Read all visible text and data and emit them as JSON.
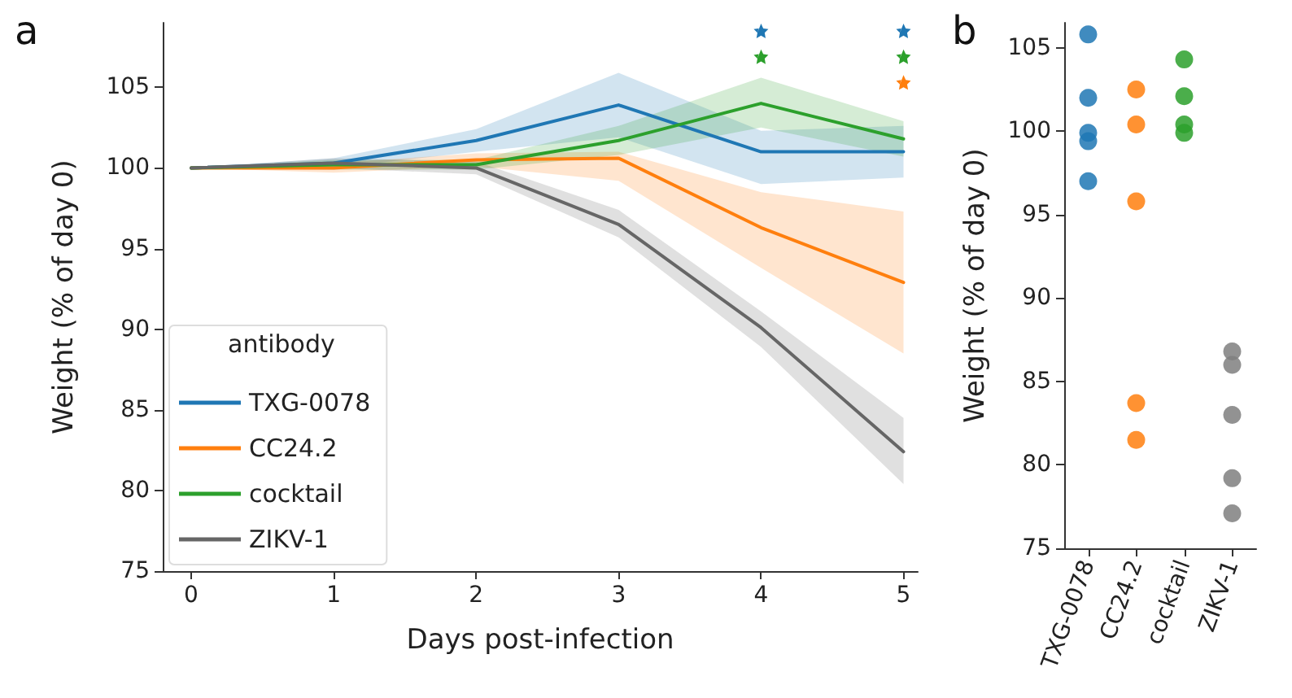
{
  "chart_data": [
    {
      "type": "line",
      "title": "a",
      "xlabel": "Days post-infection",
      "ylabel": "Weight (% of day 0)",
      "legend_title": "antibody",
      "legend": "bottom left",
      "grid": false,
      "x": [
        0,
        1,
        2,
        3,
        4,
        5
      ],
      "xlim": [
        -0.2,
        5.1
      ],
      "xticks": [
        0,
        1,
        2,
        3,
        4,
        5
      ],
      "ylim": [
        75,
        109
      ],
      "yticks": [
        75,
        80,
        85,
        90,
        95,
        100,
        105
      ],
      "series": [
        {
          "name": "TXG-0078",
          "color": "#1f77b4",
          "values": [
            100,
            100.3,
            101.7,
            103.9,
            101.0,
            101.0
          ],
          "lower": [
            100,
            100.0,
            101.0,
            101.9,
            99.0,
            99.4
          ],
          "upper": [
            100,
            100.6,
            102.4,
            105.9,
            102.3,
            102.6
          ]
        },
        {
          "name": "CC24.2",
          "color": "#ff7f0e",
          "values": [
            100,
            100.0,
            100.5,
            100.6,
            96.3,
            92.9
          ],
          "lower": [
            100,
            99.7,
            100.1,
            99.2,
            93.8,
            88.5
          ],
          "upper": [
            100,
            100.3,
            100.9,
            101.0,
            98.5,
            97.3
          ]
        },
        {
          "name": "cocktail",
          "color": "#2ca02c",
          "values": [
            100,
            100.2,
            100.2,
            101.7,
            104.0,
            101.8
          ],
          "lower": [
            100,
            99.9,
            99.9,
            100.8,
            102.5,
            100.7
          ],
          "upper": [
            100,
            100.5,
            100.5,
            102.6,
            105.6,
            102.9
          ]
        },
        {
          "name": "ZIKV-1",
          "color": "#666666",
          "values": [
            100,
            100.3,
            100.0,
            96.5,
            90.1,
            82.4
          ],
          "lower": [
            100,
            100.0,
            99.6,
            95.7,
            88.9,
            80.4
          ],
          "upper": [
            100,
            100.6,
            100.4,
            97.4,
            91.1,
            84.5
          ]
        },
        {
          "type": "scatter",
          "marker": "star",
          "color": "#1f77b4",
          "x": [
            4,
            5
          ],
          "values": [
            108.5,
            108.5
          ]
        },
        {
          "type": "scatter",
          "marker": "star",
          "color": "#2ca02c",
          "x": [
            4,
            5
          ],
          "values": [
            106.9,
            106.9
          ]
        },
        {
          "type": "scatter",
          "marker": "star",
          "color": "#ff7f0e",
          "x": [
            5
          ],
          "values": [
            105.3
          ]
        }
      ]
    },
    {
      "type": "scatter",
      "title": "b",
      "ylabel": "Weight (% of day 0)",
      "grid": false,
      "marker": "circle",
      "categories": [
        "TXG-0078",
        "CC24.2",
        "cocktail",
        "ZIKV-1"
      ],
      "ylim": [
        75,
        106.5
      ],
      "yticks": [
        75,
        80,
        85,
        90,
        95,
        100,
        105
      ],
      "series": [
        {
          "color": "#1f77b4",
          "x": [
            "TXG-0078",
            "TXG-0078",
            "TXG-0078",
            "TXG-0078",
            "TXG-0078"
          ],
          "values": [
            105.8,
            102.0,
            99.9,
            99.4,
            97.0
          ]
        },
        {
          "color": "#ff7f0e",
          "x": [
            "CC24.2",
            "CC24.2",
            "CC24.2",
            "CC24.2",
            "CC24.2"
          ],
          "values": [
            102.5,
            100.4,
            95.8,
            83.7,
            81.5
          ]
        },
        {
          "color": "#2ca02c",
          "x": [
            "cocktail",
            "cocktail",
            "cocktail",
            "cocktail"
          ],
          "values": [
            104.3,
            102.1,
            100.4,
            99.9
          ]
        },
        {
          "color": "#7f7f7f",
          "x": [
            "ZIKV-1",
            "ZIKV-1",
            "ZIKV-1",
            "ZIKV-1",
            "ZIKV-1"
          ],
          "values": [
            86.8,
            86.0,
            83.0,
            79.2,
            77.1
          ]
        }
      ]
    }
  ]
}
